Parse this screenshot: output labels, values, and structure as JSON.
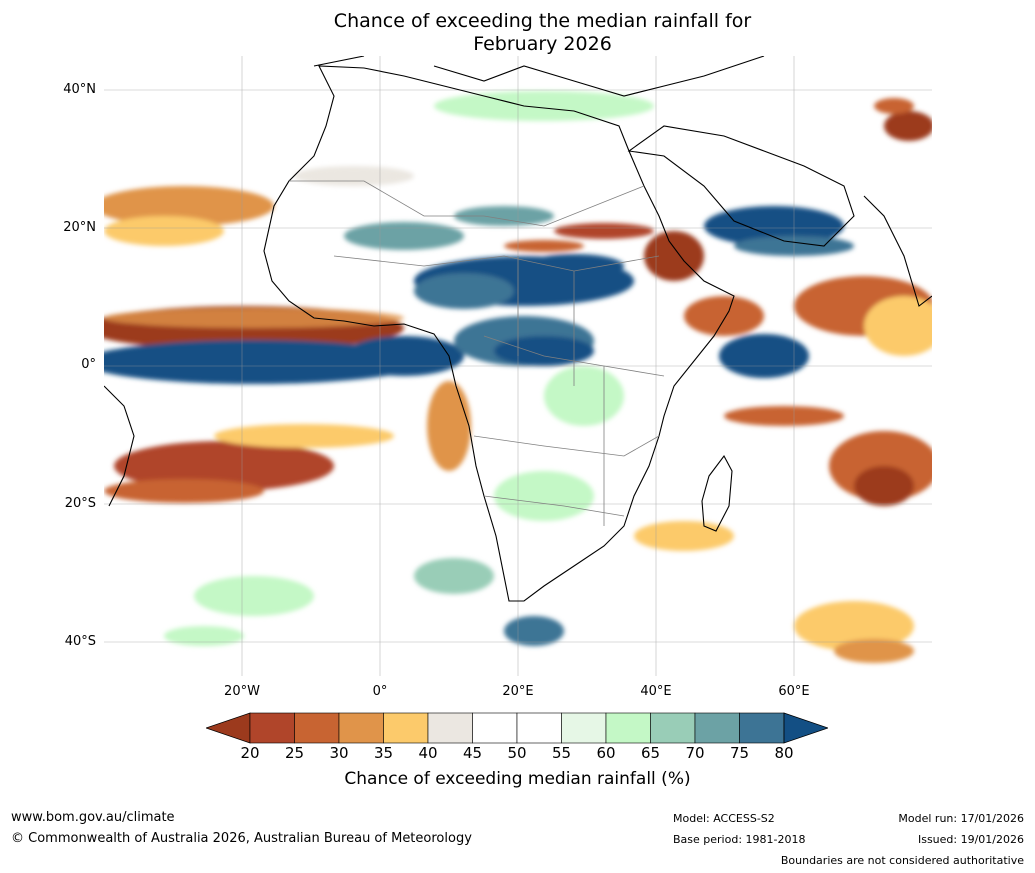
{
  "title": {
    "line1": "Chance of exceeding the median rainfall for",
    "line2": "February 2026"
  },
  "lat_labels": [
    "40°N",
    "20°N",
    "0°",
    "20°S",
    "40°S"
  ],
  "lon_labels": [
    "20°W",
    "0°",
    "20°E",
    "40°E",
    "60°E"
  ],
  "colorbar": {
    "title": "Chance of exceeding median rainfall (%)",
    "ticks": [
      "20",
      "25",
      "30",
      "35",
      "40",
      "45",
      "50",
      "55",
      "60",
      "65",
      "70",
      "75",
      "80"
    ],
    "colors": [
      "#9c3a1d",
      "#b0452a",
      "#c86432",
      "#e0944a",
      "#fcca6b",
      "#ebe7e1",
      "#ffffff",
      "#ffffff",
      "#e6f7e6",
      "#c4f8c6",
      "#99cdb7",
      "#6ca2a5",
      "#3d7495",
      "#134f84"
    ],
    "extend": "both"
  },
  "map": {
    "region": "Africa",
    "lon_range": [
      -38,
      82
    ],
    "lat_range": [
      -45,
      45
    ],
    "ocean_color": "#ffffff",
    "coast_color": "#000000",
    "border_color": "#808080"
  },
  "footer": {
    "website": "www.bom.gov.au/climate",
    "copyright": "© Commonwealth of Australia 2026, Australian Bureau of Meteorology",
    "model": "Model: ACCESS-S2",
    "base_period": "Base period: 1981-2018",
    "model_run": "Model run: 17/01/2026",
    "issued": "Issued: 19/01/2026",
    "disclaimer": "Boundaries are not considered authoritative"
  }
}
